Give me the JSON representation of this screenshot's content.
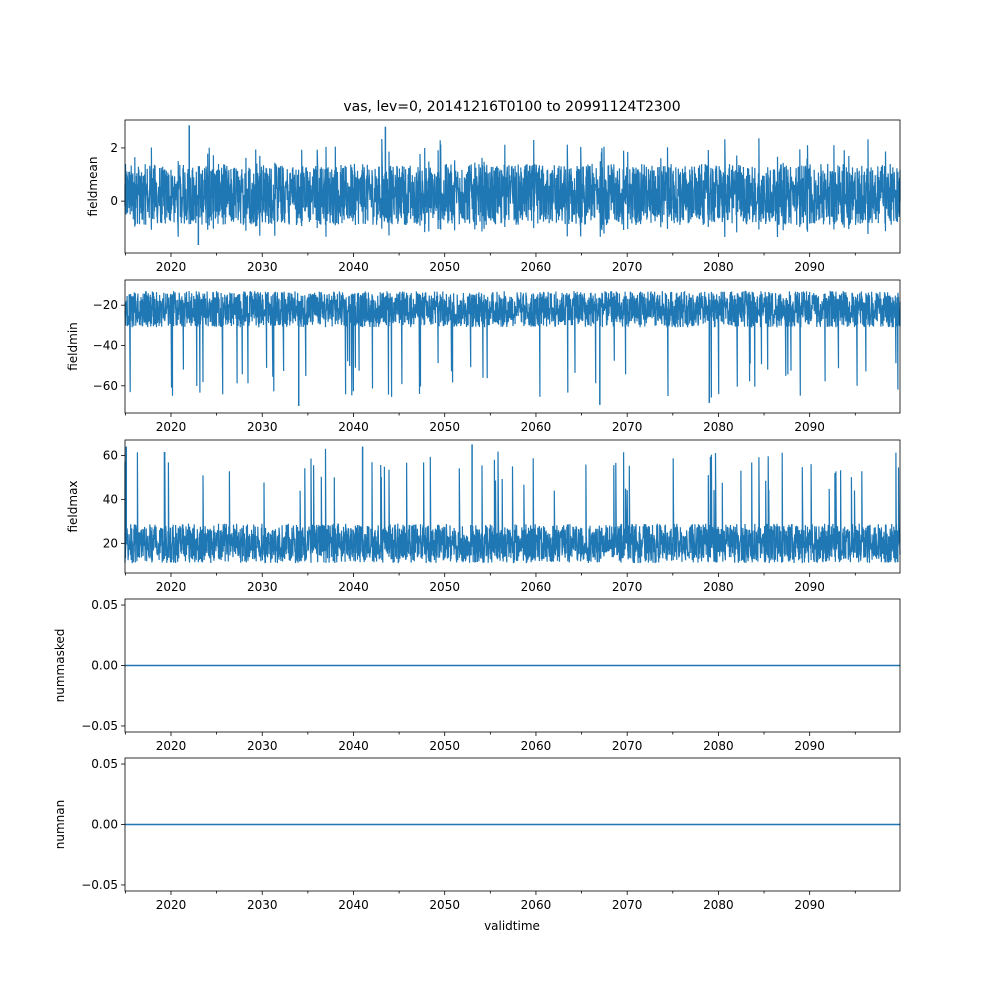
{
  "figure_title": "vas, lev=0, 20141216T0100 to 20991124T2300",
  "xlabel": "validtime",
  "series_color": "#1f77b4",
  "chart_data": [
    {
      "type": "line",
      "ylabel": "fieldmean",
      "xlim": [
        2014.96,
        2099.9
      ],
      "ylim": [
        -1.95,
        3.05
      ],
      "x_ticks": [
        2020,
        2030,
        2040,
        2050,
        2060,
        2070,
        2080,
        2090
      ],
      "y_ticks": [
        0,
        2
      ],
      "band": {
        "low": -0.9,
        "high": 1.4
      },
      "range": [
        -1.65,
        2.85
      ],
      "series": [
        {
          "values": [
            [
              2022.0,
              2.85
            ],
            [
              2023.0,
              -1.65
            ],
            [
              2043.5,
              2.8
            ]
          ]
        }
      ]
    },
    {
      "type": "line",
      "ylabel": "fieldmin",
      "xlim": [
        2014.96,
        2099.9
      ],
      "ylim": [
        -73.5,
        -7.5
      ],
      "x_ticks": [
        2020,
        2030,
        2040,
        2050,
        2060,
        2070,
        2080,
        2090
      ],
      "y_ticks": [
        -60,
        -40,
        -20
      ],
      "band": {
        "low": -31.0,
        "high": -13.0
      },
      "range": [
        -70.0,
        -10.0
      ],
      "series": [
        {
          "values": [
            [
              2034.0,
              -70.0
            ],
            [
              2067.0,
              -69.5
            ],
            [
              2079.0,
              -68.5
            ]
          ]
        }
      ]
    },
    {
      "type": "line",
      "ylabel": "fieldmax",
      "xlim": [
        2014.96,
        2099.9
      ],
      "ylim": [
        6.5,
        67.0
      ],
      "x_ticks": [
        2020,
        2030,
        2040,
        2050,
        2060,
        2070,
        2080,
        2090
      ],
      "y_ticks": [
        20,
        40,
        60
      ],
      "band": {
        "low": 11.0,
        "high": 29.0
      },
      "range": [
        8.5,
        65.0
      ],
      "series": [
        {
          "values": [
            [
              2015.1,
              64.0
            ],
            [
              2041.0,
              64.0
            ],
            [
              2053.0,
              65.0
            ]
          ]
        }
      ]
    },
    {
      "type": "line",
      "ylabel": "nummasked",
      "xlim": [
        2014.96,
        2099.9
      ],
      "ylim": [
        -0.055,
        0.055
      ],
      "x_ticks": [
        2020,
        2030,
        2040,
        2050,
        2060,
        2070,
        2080,
        2090
      ],
      "y_ticks": [
        -0.05,
        0.0,
        0.05
      ],
      "y_tick_labels": [
        "−0.05",
        "0.00",
        "0.05"
      ],
      "series": [
        {
          "values": [
            [
              2014.96,
              0.0
            ],
            [
              2099.9,
              0.0
            ]
          ]
        }
      ]
    },
    {
      "type": "line",
      "ylabel": "numnan",
      "xlim": [
        2014.96,
        2099.9
      ],
      "ylim": [
        -0.055,
        0.055
      ],
      "x_ticks": [
        2020,
        2030,
        2040,
        2050,
        2060,
        2070,
        2080,
        2090
      ],
      "y_ticks": [
        -0.05,
        0.0,
        0.05
      ],
      "y_tick_labels": [
        "−0.05",
        "0.00",
        "0.05"
      ],
      "series": [
        {
          "values": [
            [
              2014.96,
              0.0
            ],
            [
              2099.9,
              0.0
            ]
          ]
        }
      ]
    }
  ]
}
